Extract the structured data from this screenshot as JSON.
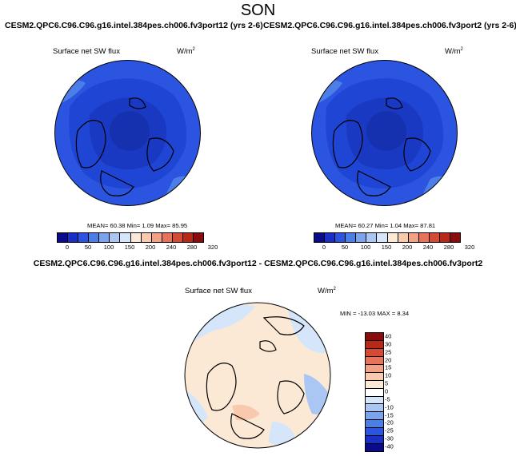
{
  "title": "SON",
  "panel_left": {
    "case_title": "CESM2.QPC6.C96.C96.g16.intel.384pes.ch006.fv3port12 (yrs 2-6)",
    "variable": "Surface net SW flux",
    "units": "W/m",
    "units_exp": "2",
    "stats": "MEAN= 60.38  Min=   1.09  Max=  85.95"
  },
  "panel_right": {
    "case_title": "CESM2.QPC6.C96.C96.g16.intel.384pes.ch006.fv3port2 (yrs 2-6)",
    "variable": "Surface net SW flux",
    "units": "W/m",
    "units_exp": "2",
    "stats": "MEAN= 60.27  Min=   1.04  Max=  87.81"
  },
  "colorbar": {
    "colors": [
      "#0a0a8c",
      "#1a2fc8",
      "#2b55e0",
      "#4c7ee8",
      "#7aa4ee",
      "#a9c7f2",
      "#d6e6fa",
      "#fbe9d6",
      "#f8c9ad",
      "#f2a184",
      "#e8735a",
      "#d64a35",
      "#b92719",
      "#8a0b0b"
    ],
    "tick_labels": [
      "0",
      "50",
      "100",
      "150",
      "200",
      "240",
      "280",
      "320"
    ]
  },
  "diff_panel": {
    "title": "CESM2.QPC6.C96.C96.g16.intel.384pes.ch006.fv3port12 - CESM2.QPC6.C96.C96.g16.intel.384pes.ch006.fv3port2",
    "variable": "Surface net SW flux",
    "units": "W/m",
    "units_exp": "2",
    "stats": "MIN = -13.03 MAX =   8.34",
    "colorbar_colors": [
      "#8a0b0b",
      "#b92719",
      "#d64a35",
      "#e8735a",
      "#f2a184",
      "#f8c9ad",
      "#fbe9d6",
      "#ffffff",
      "#d6e6fa",
      "#a9c7f2",
      "#7aa4ee",
      "#4c7ee8",
      "#2b55e0",
      "#1a2fc8",
      "#0a0a8c"
    ],
    "colorbar_ticks": [
      "40",
      "30",
      "25",
      "20",
      "15",
      "10",
      "5",
      "0",
      "-5",
      "-10",
      "-15",
      "-20",
      "-25",
      "-30",
      "-40"
    ]
  }
}
